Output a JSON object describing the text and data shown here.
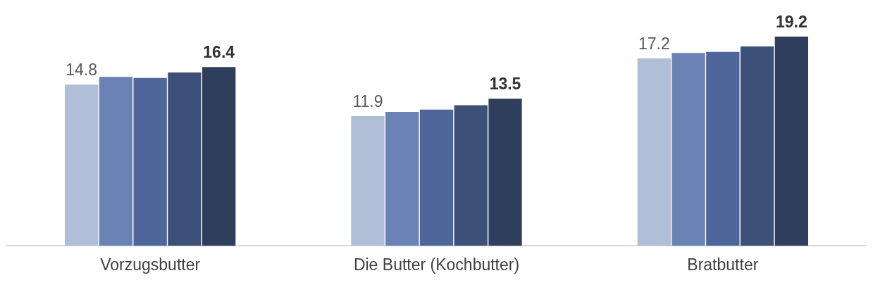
{
  "chart_data": {
    "type": "bar",
    "categories": [
      "Vorzugsbutter",
      "Die Butter (Kochbutter)",
      "Bratbutter"
    ],
    "series": [
      {
        "color": "#b0bed8",
        "values": [
          14.8,
          11.9,
          17.2
        ],
        "value_labels": [
          "14.8",
          "11.9",
          "17.2"
        ]
      },
      {
        "color": "#6a82b4",
        "values": [
          15.5,
          12.3,
          17.7
        ]
      },
      {
        "color": "#4e6699",
        "values": [
          15.4,
          12.5,
          17.8
        ]
      },
      {
        "color": "#3d5078",
        "values": [
          15.9,
          12.9,
          18.3
        ]
      },
      {
        "color": "#2e3e5c",
        "values": [
          16.4,
          13.5,
          19.2
        ],
        "value_labels": [
          "16.4",
          "13.5",
          "19.2"
        ]
      }
    ],
    "grid": false,
    "legend": false
  }
}
